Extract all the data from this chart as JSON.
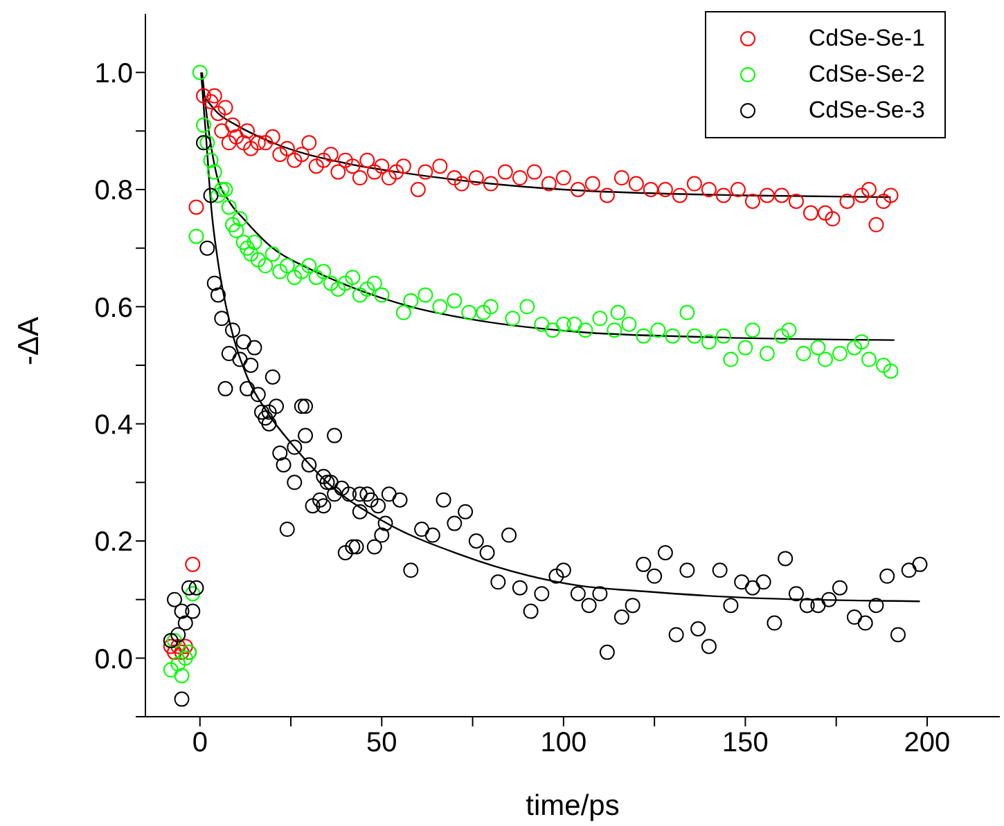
{
  "chart_data": {
    "type": "scatter",
    "xlabel": "time/ps",
    "ylabel": "-ΔA",
    "xlim": [
      -15,
      220
    ],
    "ylim": [
      -0.1,
      1.1
    ],
    "xticks": [
      0,
      {
        "value": 25,
        "label": null
      },
      50,
      {
        "value": 75,
        "label": null
      },
      100,
      {
        "value": 125,
        "label": null
      },
      150,
      {
        "value": 175,
        "label": null
      },
      200
    ],
    "yticks": [
      {
        "value": -0.1,
        "label": null
      },
      {
        "value": 0,
        "label": "0.0"
      },
      {
        "value": 0.1,
        "label": null
      },
      0.2,
      {
        "value": 0.3,
        "label": null
      },
      0.4,
      {
        "value": 0.5,
        "label": null
      },
      0.6,
      {
        "value": 0.7,
        "label": null
      },
      0.8,
      {
        "value": 0.9,
        "label": null
      },
      {
        "value": 1,
        "label": "1.0"
      }
    ],
    "grid": false,
    "legend": "top right",
    "marker": "circle",
    "series": [
      {
        "name": "CdSe-Se-1",
        "color": "#ff0000",
        "x": [
          -8,
          -7,
          -6,
          -5,
          -4,
          -3,
          -2,
          -1,
          1,
          3,
          4,
          5,
          6,
          7,
          8,
          9,
          10,
          12,
          13,
          14,
          16,
          18,
          20,
          22,
          24,
          26,
          28,
          30,
          32,
          34,
          36,
          38,
          40,
          42,
          44,
          46,
          48,
          50,
          52,
          54,
          56,
          60,
          62,
          66,
          70,
          72,
          76,
          80,
          84,
          88,
          92,
          96,
          100,
          104,
          108,
          112,
          116,
          120,
          124,
          128,
          132,
          136,
          140,
          144,
          148,
          152,
          156,
          160,
          164,
          168,
          172,
          174,
          178,
          182,
          184,
          186,
          188,
          190
        ],
        "values": [
          0.02,
          0.01,
          0.02,
          0.01,
          0.02,
          0.01,
          0.16,
          0.77,
          0.96,
          0.95,
          0.96,
          0.93,
          0.9,
          0.94,
          0.88,
          0.91,
          0.89,
          0.88,
          0.9,
          0.87,
          0.88,
          0.88,
          0.89,
          0.86,
          0.87,
          0.85,
          0.86,
          0.88,
          0.84,
          0.85,
          0.86,
          0.83,
          0.85,
          0.84,
          0.82,
          0.85,
          0.83,
          0.84,
          0.82,
          0.83,
          0.84,
          0.8,
          0.83,
          0.84,
          0.82,
          0.81,
          0.82,
          0.81,
          0.83,
          0.82,
          0.83,
          0.81,
          0.82,
          0.8,
          0.81,
          0.79,
          0.82,
          0.81,
          0.8,
          0.8,
          0.79,
          0.81,
          0.8,
          0.79,
          0.8,
          0.78,
          0.79,
          0.79,
          0.78,
          0.76,
          0.76,
          0.75,
          0.78,
          0.79,
          0.8,
          0.74,
          0.78,
          0.79
        ]
      },
      {
        "name": "CdSe-Se-2",
        "color": "#00ff00",
        "x": [
          -8,
          -7,
          -6,
          -5,
          -4,
          -3,
          -2,
          -1,
          0,
          1,
          2,
          3,
          4,
          5,
          6,
          7,
          8,
          9,
          10,
          11,
          12,
          13,
          14,
          15,
          16,
          18,
          20,
          22,
          24,
          26,
          28,
          30,
          32,
          34,
          36,
          38,
          40,
          42,
          44,
          46,
          48,
          50,
          56,
          58,
          62,
          66,
          70,
          74,
          78,
          80,
          86,
          90,
          94,
          97,
          100,
          103,
          106,
          110,
          114,
          115,
          118,
          122,
          126,
          130,
          134,
          136,
          140,
          144,
          146,
          150,
          152,
          156,
          160,
          162,
          166,
          170,
          172,
          176,
          180,
          182,
          184,
          188,
          190
        ],
        "values": [
          -0.02,
          0.03,
          -0.01,
          -0.03,
          0,
          0.01,
          0.11,
          0.72,
          1.0,
          0.91,
          0.88,
          0.85,
          0.83,
          0.79,
          0.8,
          0.8,
          0.77,
          0.74,
          0.73,
          0.75,
          0.71,
          0.7,
          0.69,
          0.71,
          0.68,
          0.67,
          0.69,
          0.66,
          0.67,
          0.65,
          0.66,
          0.67,
          0.65,
          0.66,
          0.64,
          0.63,
          0.64,
          0.65,
          0.62,
          0.63,
          0.64,
          0.62,
          0.59,
          0.61,
          0.62,
          0.6,
          0.61,
          0.59,
          0.59,
          0.6,
          0.58,
          0.6,
          0.57,
          0.56,
          0.57,
          0.57,
          0.56,
          0.58,
          0.56,
          0.59,
          0.57,
          0.55,
          0.56,
          0.55,
          0.59,
          0.55,
          0.54,
          0.55,
          0.51,
          0.53,
          0.56,
          0.52,
          0.55,
          0.56,
          0.52,
          0.53,
          0.51,
          0.52,
          0.53,
          0.54,
          0.51,
          0.5,
          0.49
        ]
      },
      {
        "name": "CdSe-Se-3",
        "color": "#000000",
        "x": [
          -8,
          -7,
          -6,
          -5,
          -5,
          -4,
          -3,
          -2,
          -1,
          1,
          2,
          3,
          4,
          5,
          6,
          7,
          8,
          9,
          11,
          12,
          13,
          14,
          15,
          16,
          17,
          18,
          19,
          19,
          20,
          21,
          22,
          23,
          24,
          26,
          26,
          28,
          29,
          29,
          30,
          31,
          33,
          34,
          34,
          35,
          36,
          37,
          37,
          39,
          40,
          41,
          42,
          43,
          44,
          44,
          46,
          47,
          48,
          49,
          50,
          51,
          52,
          55,
          58,
          61,
          64,
          67,
          70,
          73,
          76,
          79,
          82,
          85,
          88,
          91,
          94,
          98,
          100,
          104,
          107,
          110,
          112,
          116,
          119,
          122,
          125,
          128,
          131,
          134,
          137,
          140,
          143,
          146,
          149,
          152,
          155,
          158,
          161,
          164,
          167,
          170,
          173,
          176,
          180,
          183,
          186,
          189,
          192,
          195,
          198
        ],
        "values": [
          0.03,
          0.1,
          0.04,
          0.08,
          -0.07,
          0.06,
          0.12,
          0.08,
          0.12,
          0.88,
          0.7,
          0.79,
          0.64,
          0.62,
          0.58,
          0.46,
          0.52,
          0.56,
          0.51,
          0.54,
          0.46,
          0.5,
          0.53,
          0.45,
          0.42,
          0.41,
          0.42,
          0.4,
          0.48,
          0.43,
          0.35,
          0.33,
          0.22,
          0.36,
          0.3,
          0.43,
          0.43,
          0.38,
          0.33,
          0.26,
          0.27,
          0.31,
          0.26,
          0.3,
          0.3,
          0.38,
          0.28,
          0.29,
          0.18,
          0.28,
          0.19,
          0.19,
          0.28,
          0.25,
          0.28,
          0.27,
          0.19,
          0.26,
          0.21,
          0.23,
          0.28,
          0.27,
          0.15,
          0.22,
          0.21,
          0.27,
          0.23,
          0.25,
          0.2,
          0.18,
          0.13,
          0.21,
          0.12,
          0.08,
          0.11,
          0.14,
          0.15,
          0.11,
          0.09,
          0.11,
          0.01,
          0.07,
          0.09,
          0.16,
          0.14,
          0.18,
          0.04,
          0.15,
          0.05,
          0.02,
          0.15,
          0.09,
          0.13,
          0.12,
          0.13,
          0.06,
          0.17,
          0.11,
          0.09,
          0.09,
          0.1,
          0.12,
          0.07,
          0.06,
          0.09,
          0.14,
          0.04,
          0.15,
          0.16
        ]
      },
      {
        "color": "#000000",
        "type": "line",
        "marker": "none",
        "x": [
          1,
          5,
          10,
          20,
          40,
          60,
          80,
          100,
          150,
          190
        ],
        "values": [
          0.96,
          0.93,
          0.91,
          0.88,
          0.845,
          0.825,
          0.81,
          0.8,
          0.79,
          0.787
        ]
      },
      {
        "color": "#000000",
        "type": "line",
        "marker": "none",
        "x": [
          0.6,
          2,
          4.4,
          8,
          12,
          20,
          30,
          39,
          58,
          77,
          104,
          140,
          191
        ],
        "values": [
          1.0,
          0.92,
          0.83,
          0.78,
          0.75,
          0.7,
          0.665,
          0.64,
          0.6,
          0.576,
          0.557,
          0.548,
          0.543
        ]
      },
      {
        "color": "#000000",
        "type": "line",
        "marker": "none",
        "x": [
          0.3,
          1.8,
          3.1,
          5,
          8.3,
          13,
          18.5,
          26,
          35,
          50.6,
          71,
          104,
          122,
          150.6,
          198
        ],
        "values": [
          1.0,
          0.88,
          0.77,
          0.675,
          0.57,
          0.48,
          0.42,
          0.36,
          0.3,
          0.233,
          0.178,
          0.124,
          0.114,
          0.103,
          0.097
        ]
      }
    ]
  }
}
